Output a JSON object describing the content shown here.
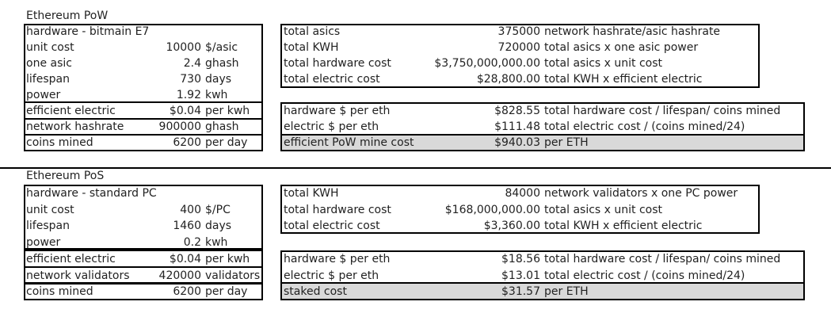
{
  "pow": {
    "title": "Ethereum PoW",
    "left": [
      {
        "label": "hardware - bitmain E7",
        "value": "",
        "unit": ""
      },
      {
        "label": "unit cost",
        "value": "10000",
        "unit": "$/asic"
      },
      {
        "label": "one asic",
        "value": "2.4",
        "unit": "ghash"
      },
      {
        "label": "lifespan",
        "value": "730",
        "unit": "days"
      },
      {
        "label": "power",
        "value": "1.92",
        "unit": "kwh"
      },
      {
        "label": "efficient electric",
        "value": "$0.04",
        "unit": "per kwh"
      },
      {
        "label": "network hashrate",
        "value": "900000",
        "unit": "ghash"
      },
      {
        "label": "coins mined",
        "value": "6200",
        "unit": "per day"
      }
    ],
    "right_top": [
      {
        "label": "total asics",
        "value": "375000",
        "note": "network hashrate/asic hashrate"
      },
      {
        "label": "total KWH",
        "value": "720000",
        "note": "total asics x one asic power"
      },
      {
        "label": "total hardware cost",
        "value": "$3,750,000,000.00",
        "note": "total asics x unit cost"
      },
      {
        "label": "total electric cost",
        "value": "$28,800.00",
        "note": "total KWH x efficient electric"
      }
    ],
    "right_bottom": [
      {
        "label": "hardware $ per eth",
        "value": "$828.55",
        "note": "total hardware cost / lifespan/ coins mined"
      },
      {
        "label": "electric $ per eth",
        "value": "$111.48",
        "note": "total electric cost / (coins mined/24)"
      },
      {
        "label": "efficient PoW mine cost",
        "value": "$940.03",
        "note": "per ETH"
      }
    ]
  },
  "pos": {
    "title": "Ethereum PoS",
    "left": [
      {
        "label": "hardware - standard PC",
        "value": "",
        "unit": ""
      },
      {
        "label": "unit cost",
        "value": "400",
        "unit": "$/PC"
      },
      {
        "label": "lifespan",
        "value": "1460",
        "unit": "days"
      },
      {
        "label": "power",
        "value": "0.2",
        "unit": "kwh"
      },
      {
        "label": "efficient electric",
        "value": "$0.04",
        "unit": "per kwh"
      },
      {
        "label": "network validators",
        "value": "420000",
        "unit": "validators"
      },
      {
        "label": "coins mined",
        "value": "6200",
        "unit": "per day"
      }
    ],
    "right_top": [
      {
        "label": "total KWH",
        "value": "84000",
        "note": "network validators x one PC power"
      },
      {
        "label": "total hardware cost",
        "value": "$168,000,000.00",
        "note": "total asics x unit cost"
      },
      {
        "label": "total electric cost",
        "value": "$3,360.00",
        "note": "total KWH x efficient electric"
      }
    ],
    "right_bottom": [
      {
        "label": "hardware $ per eth",
        "value": "$18.56",
        "note": "total hardware cost / lifespan/ coins mined"
      },
      {
        "label": "electric $ per eth",
        "value": "$13.01",
        "note": "total electric cost / (coins mined/24)"
      },
      {
        "label": "staked cost",
        "value": "$31.57",
        "note": "per ETH"
      }
    ]
  }
}
